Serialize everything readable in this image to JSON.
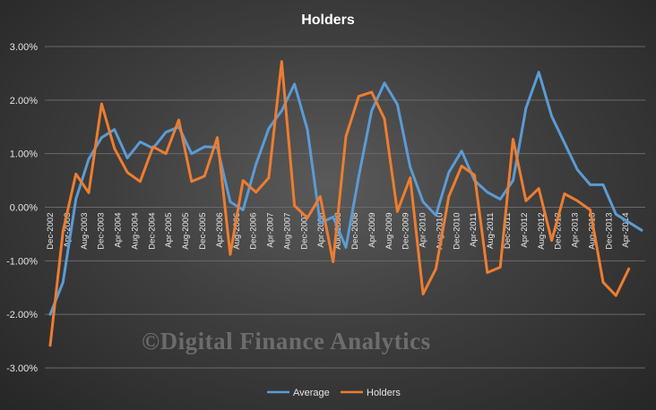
{
  "chart_data": {
    "type": "line",
    "title": "Holders",
    "ylim": [
      -3.0,
      3.0
    ],
    "ytick_step": 1.0,
    "y_format": "percent_2dp",
    "grid": true,
    "legend_position": "bottom",
    "x_tick_labels": [
      "Dec-2002",
      "Apr-2003",
      "Aug-2003",
      "Dec-2003",
      "Apr-2004",
      "Aug-2004",
      "Dec-2004",
      "Apr-2005",
      "Aug-2005",
      "Dec-2005",
      "Apr-2006",
      "Aug-2006",
      "Dec-2006",
      "Apr-2007",
      "Aug-2007",
      "Dec-2007",
      "Apr-2008",
      "Aug-2008",
      "Dec-2008",
      "Apr-2009",
      "Aug-2009",
      "Dec-2009",
      "Apr-2010",
      "Aug-2010",
      "Dec-2010",
      "Apr-2011",
      "Aug-2011",
      "Dec-2011",
      "Apr-2012",
      "Aug-2012",
      "Dec-2012",
      "Apr-2013",
      "Aug-2013",
      "Dec-2013",
      "Apr-2014"
    ],
    "series": [
      {
        "name": "Average",
        "color": "#5b9bd5",
        "values": [
          -2.0,
          -1.4,
          0.15,
          0.9,
          1.3,
          1.45,
          0.92,
          1.22,
          1.1,
          1.4,
          1.5,
          1.0,
          1.13,
          1.12,
          0.1,
          -0.05,
          0.8,
          1.47,
          1.8,
          2.3,
          1.45,
          -0.3,
          -0.18,
          -0.75,
          0.57,
          1.8,
          2.32,
          1.92,
          0.75,
          0.1,
          -0.15,
          0.65,
          1.05,
          0.5,
          0.28,
          0.15,
          0.5,
          1.85,
          2.52,
          1.7,
          1.2,
          0.7,
          0.42,
          0.42,
          -0.13,
          -0.28,
          -0.43
        ]
      },
      {
        "name": "Holders",
        "color": "#ed7d31",
        "values": [
          -2.58,
          -0.45,
          0.62,
          0.27,
          1.93,
          1.1,
          0.65,
          0.48,
          1.13,
          1.0,
          1.63,
          0.48,
          0.58,
          1.3,
          -0.88,
          0.5,
          0.28,
          0.55,
          2.72,
          0.03,
          -0.2,
          0.2,
          -1.02,
          1.32,
          2.07,
          2.15,
          1.65,
          -0.08,
          0.55,
          -1.62,
          -1.15,
          0.2,
          0.77,
          0.6,
          -1.22,
          -1.12,
          1.27,
          0.12,
          0.35,
          -0.62,
          0.25,
          0.12,
          -0.05,
          -1.4,
          -1.65,
          -1.15
        ]
      }
    ]
  },
  "watermark": "©Digital Finance Analytics"
}
